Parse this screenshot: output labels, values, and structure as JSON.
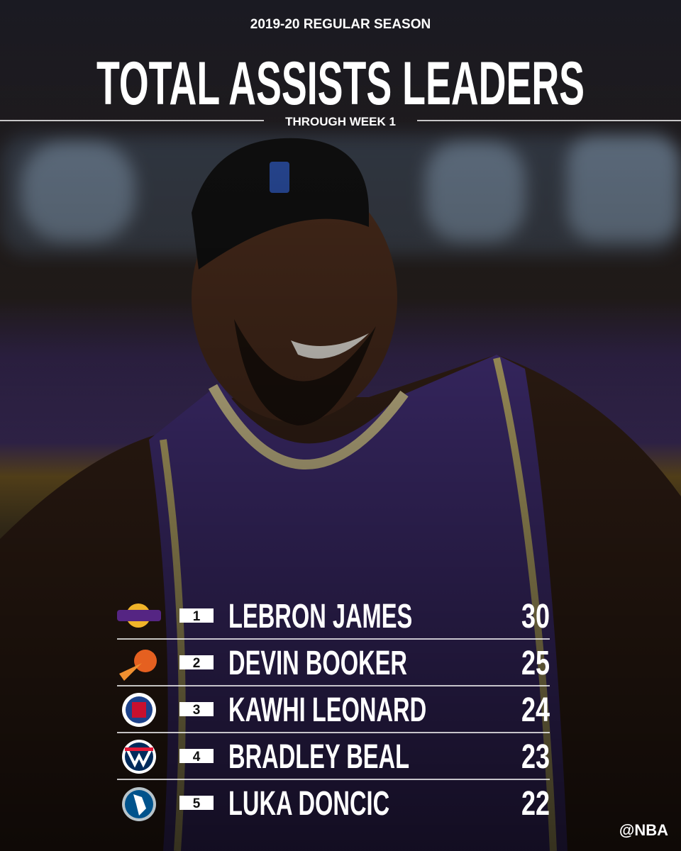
{
  "header": {
    "season": "2019-20 REGULAR SEASON",
    "title": "TOTAL ASSISTS LEADERS",
    "subtitle": "THROUGH WEEK 1"
  },
  "table": {
    "rows": [
      {
        "rank": 1,
        "name": "LEBRON JAMES",
        "value": 30
      },
      {
        "rank": 2,
        "name": "DEVIN BOOKER",
        "value": 25
      },
      {
        "rank": 3,
        "name": "KAWHI LEONARD",
        "value": 24
      },
      {
        "rank": 4,
        "name": "BRADLEY BEAL",
        "value": 23
      },
      {
        "rank": 5,
        "name": "LUKA DONCIC",
        "value": 22
      }
    ]
  },
  "footer": {
    "credit": "@NBA"
  }
}
